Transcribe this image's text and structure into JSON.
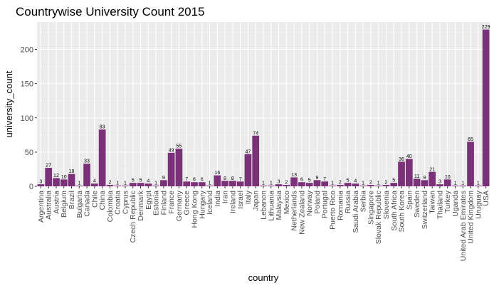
{
  "chart_data": {
    "type": "bar",
    "title": "Countrywise University Count 2015",
    "xlabel": "country",
    "ylabel": "university_count",
    "ylim": [
      0,
      240
    ],
    "yticks": [
      0,
      50,
      100,
      150,
      200
    ],
    "grid": true,
    "bar_color": "#7b3179",
    "panel_color": "#ebebeb",
    "categories": [
      "Argentina",
      "Australia",
      "Austria",
      "Belgium",
      "Brazil",
      "Bulgaria",
      "Canada",
      "Chile",
      "China",
      "Colombia",
      "Croatia",
      "Cyprus",
      "Czech Republic",
      "Denmark",
      "Egypt",
      "Estonia",
      "Finland",
      "France",
      "Germany",
      "Greece",
      "Hong Kong",
      "Hungary",
      "Iceland",
      "India",
      "Iran",
      "Ireland",
      "Israel",
      "Italy",
      "Japan",
      "Lebanon",
      "Lithuania",
      "Malaysia",
      "Mexico",
      "Netherlands",
      "New Zealand",
      "Norway",
      "Poland",
      "Portugal",
      "Puerto Rico",
      "Romania",
      "Russia",
      "Saudi Arabia",
      "Serbia",
      "Singapore",
      "Slovak Republic",
      "Slovenia",
      "South Africa",
      "South Korea",
      "Spain",
      "Sweden",
      "Switzerland",
      "Taiwan",
      "Thailand",
      "Turkey",
      "Uganda",
      "United Arab Emirates",
      "United Kingdom",
      "Uruguay",
      "USA"
    ],
    "values": [
      3,
      27,
      12,
      10,
      18,
      1,
      33,
      4,
      83,
      2,
      1,
      1,
      5,
      5,
      4,
      1,
      9,
      49,
      55,
      7,
      6,
      6,
      1,
      16,
      8,
      8,
      7,
      47,
      74,
      1,
      1,
      3,
      2,
      13,
      6,
      5,
      9,
      7,
      1,
      2,
      5,
      4,
      1,
      2,
      1,
      2,
      5,
      36,
      40,
      11,
      9,
      21,
      3,
      10,
      1,
      1,
      65,
      1,
      229
    ]
  }
}
